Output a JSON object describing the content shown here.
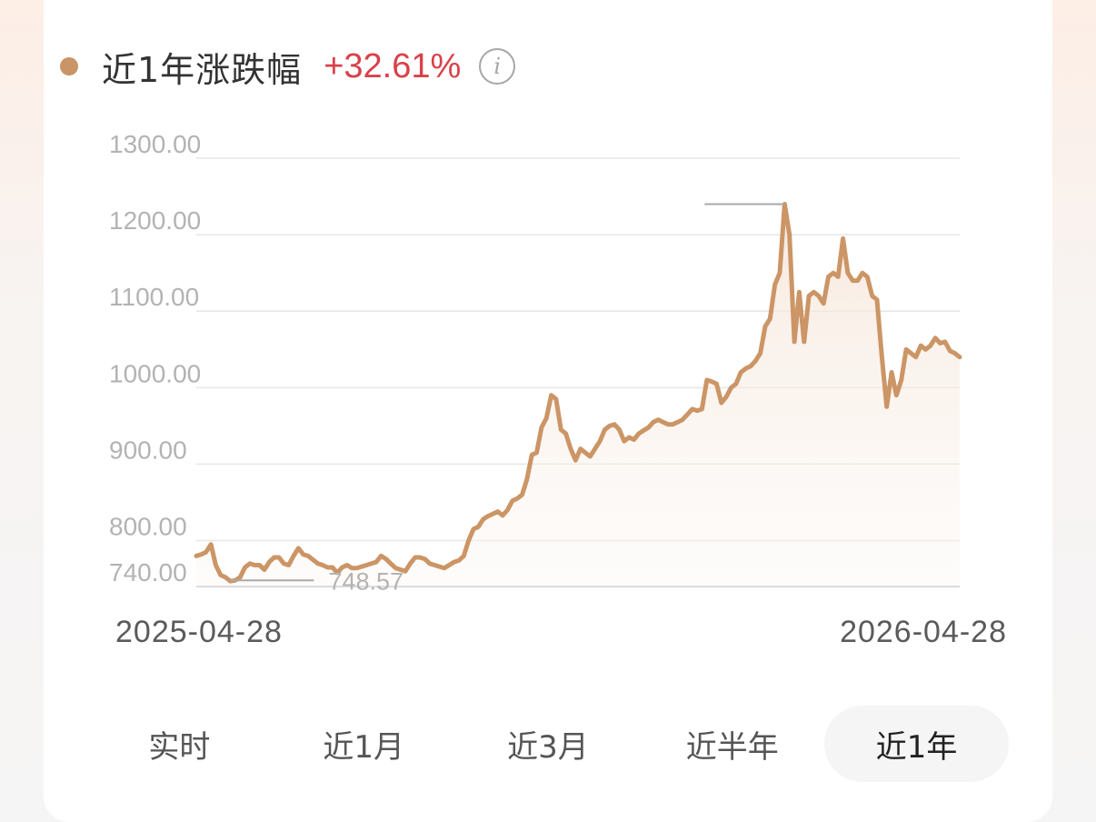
{
  "header": {
    "title": "近1年涨跌幅",
    "change": "+32.61%",
    "info_icon": "info-icon",
    "dot_color": "#c99466",
    "change_color": "#d9414a"
  },
  "chart_data": {
    "type": "area",
    "title": "",
    "xlabel": "",
    "ylabel": "",
    "ylim": [
      740,
      1300
    ],
    "yticks": [
      "1300.00",
      "1200.00",
      "1100.00",
      "1000.00",
      "900.00",
      "800.00",
      "740.00"
    ],
    "ytick_values": [
      1300,
      1200,
      1100,
      1000,
      900,
      800,
      740
    ],
    "x_start_label": "2025-04-28",
    "x_end_label": "2026-04-28",
    "grid": true,
    "line_color": "#cc9566",
    "min_label": "748.57",
    "series": [
      {
        "values": [
          780,
          782,
          785,
          795,
          768,
          755,
          752,
          747,
          748,
          752,
          765,
          770,
          768,
          768,
          762,
          772,
          778,
          778,
          770,
          768,
          780,
          790,
          782,
          780,
          775,
          770,
          768,
          765,
          765,
          758,
          765,
          768,
          764,
          764,
          766,
          768,
          770,
          772,
          780,
          776,
          770,
          764,
          762,
          760,
          770,
          778,
          778,
          776,
          770,
          768,
          766,
          764,
          768,
          772,
          774,
          780,
          800,
          815,
          818,
          828,
          832,
          835,
          838,
          833,
          840,
          852,
          855,
          860,
          880,
          912,
          915,
          948,
          960,
          990,
          985,
          945,
          940,
          920,
          905,
          920,
          915,
          910,
          920,
          930,
          945,
          950,
          952,
          945,
          930,
          935,
          932,
          940,
          944,
          948,
          955,
          958,
          955,
          952,
          952,
          955,
          958,
          965,
          972,
          970,
          972,
          1010,
          1008,
          1005,
          980,
          988,
          1000,
          1005,
          1020,
          1025,
          1028,
          1035,
          1045,
          1080,
          1090,
          1135,
          1150,
          1240,
          1200,
          1060,
          1125,
          1060,
          1120,
          1125,
          1120,
          1110,
          1145,
          1150,
          1145,
          1195,
          1150,
          1140,
          1140,
          1150,
          1145,
          1120,
          1115,
          1040,
          975,
          1020,
          990,
          1010,
          1050,
          1045,
          1040,
          1055,
          1050,
          1055,
          1065,
          1058,
          1060,
          1048,
          1045,
          1040
        ]
      }
    ]
  },
  "dates": {
    "start": "2025-04-28",
    "end": "2026-04-28"
  },
  "tabs": [
    {
      "label": "实时",
      "active": false
    },
    {
      "label": "近1月",
      "active": false
    },
    {
      "label": "近3月",
      "active": false
    },
    {
      "label": "近半年",
      "active": false
    },
    {
      "label": "近1年",
      "active": true
    }
  ]
}
